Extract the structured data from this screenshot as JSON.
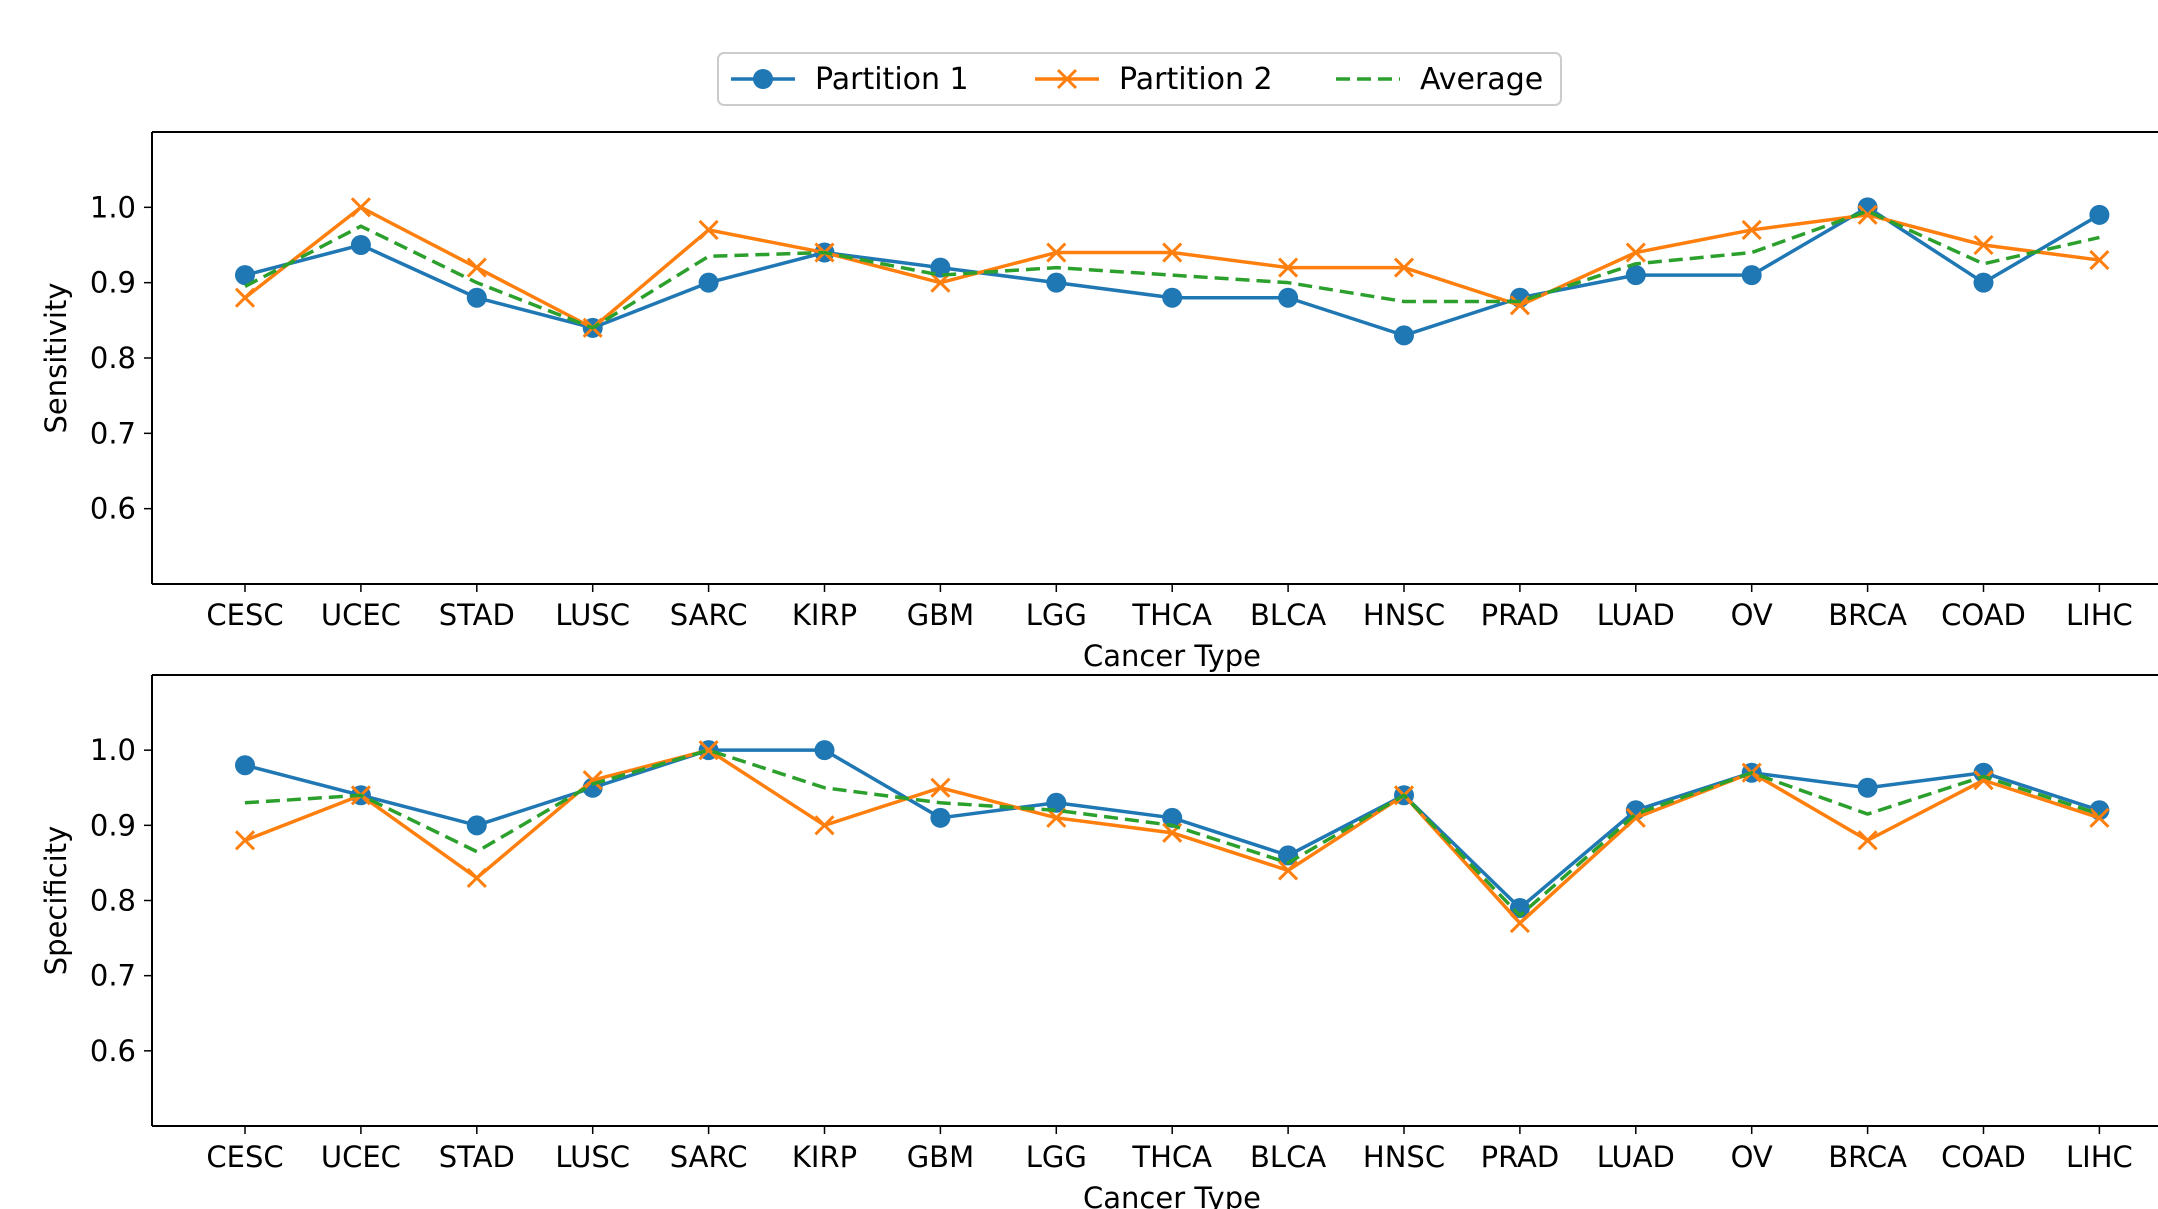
{
  "chart_data": [
    {
      "type": "line",
      "title": "",
      "xlabel": "Cancer Type",
      "ylabel": "Sensitivity",
      "ylim": [
        0.5,
        1.1
      ],
      "yticks": [
        "0.6",
        "0.7",
        "0.8",
        "0.9",
        "1.0"
      ],
      "categories": [
        "CESC",
        "UCEC",
        "STAD",
        "LUSC",
        "SARC",
        "KIRP",
        "GBM",
        "LGG",
        "THCA",
        "BLCA",
        "HNSC",
        "PRAD",
        "LUAD",
        "OV",
        "BRCA",
        "COAD",
        "LIHC"
      ],
      "grid": false,
      "series": [
        {
          "name": "Partition 1",
          "color": "#1f77b4",
          "marker": "circle",
          "values": [
            0.91,
            0.95,
            0.88,
            0.84,
            0.9,
            0.94,
            0.92,
            0.9,
            0.88,
            0.88,
            0.83,
            0.88,
            0.91,
            0.91,
            1.0,
            0.9,
            0.99
          ]
        },
        {
          "name": "Partition 2",
          "color": "#ff7f0e",
          "marker": "x",
          "values": [
            0.88,
            1.0,
            0.92,
            0.84,
            0.97,
            0.94,
            0.9,
            0.94,
            0.94,
            0.92,
            0.92,
            0.87,
            0.94,
            0.97,
            0.99,
            0.95,
            0.93
          ]
        },
        {
          "name": "Average",
          "color": "#2ca02c",
          "marker": "none",
          "dashed": true,
          "values": [
            0.895,
            0.975,
            0.9,
            0.84,
            0.935,
            0.94,
            0.91,
            0.92,
            0.91,
            0.9,
            0.875,
            0.875,
            0.925,
            0.94,
            0.995,
            0.925,
            0.96
          ]
        }
      ]
    },
    {
      "type": "line",
      "title": "",
      "xlabel": "Cancer Type",
      "ylabel": "Specificity",
      "ylim": [
        0.5,
        1.1
      ],
      "yticks": [
        "0.6",
        "0.7",
        "0.8",
        "0.9",
        "1.0"
      ],
      "categories": [
        "CESC",
        "UCEC",
        "STAD",
        "LUSC",
        "SARC",
        "KIRP",
        "GBM",
        "LGG",
        "THCA",
        "BLCA",
        "HNSC",
        "PRAD",
        "LUAD",
        "OV",
        "BRCA",
        "COAD",
        "LIHC"
      ],
      "grid": false,
      "series": [
        {
          "name": "Partition 1",
          "color": "#1f77b4",
          "marker": "circle",
          "values": [
            0.98,
            0.94,
            0.9,
            0.95,
            1.0,
            1.0,
            0.91,
            0.93,
            0.91,
            0.86,
            0.94,
            0.79,
            0.92,
            0.97,
            0.95,
            0.97,
            0.92
          ]
        },
        {
          "name": "Partition 2",
          "color": "#ff7f0e",
          "marker": "x",
          "values": [
            0.88,
            0.94,
            0.83,
            0.96,
            1.0,
            0.9,
            0.95,
            0.91,
            0.89,
            0.84,
            0.94,
            0.77,
            0.91,
            0.97,
            0.88,
            0.96,
            0.91
          ]
        },
        {
          "name": "Average",
          "color": "#2ca02c",
          "marker": "none",
          "dashed": true,
          "values": [
            0.93,
            0.94,
            0.865,
            0.955,
            1.0,
            0.95,
            0.93,
            0.92,
            0.9,
            0.85,
            0.94,
            0.78,
            0.915,
            0.97,
            0.915,
            0.965,
            0.915
          ]
        }
      ]
    }
  ],
  "legend": {
    "position": "top-center",
    "entries": [
      "Partition 1",
      "Partition 2",
      "Average"
    ]
  }
}
